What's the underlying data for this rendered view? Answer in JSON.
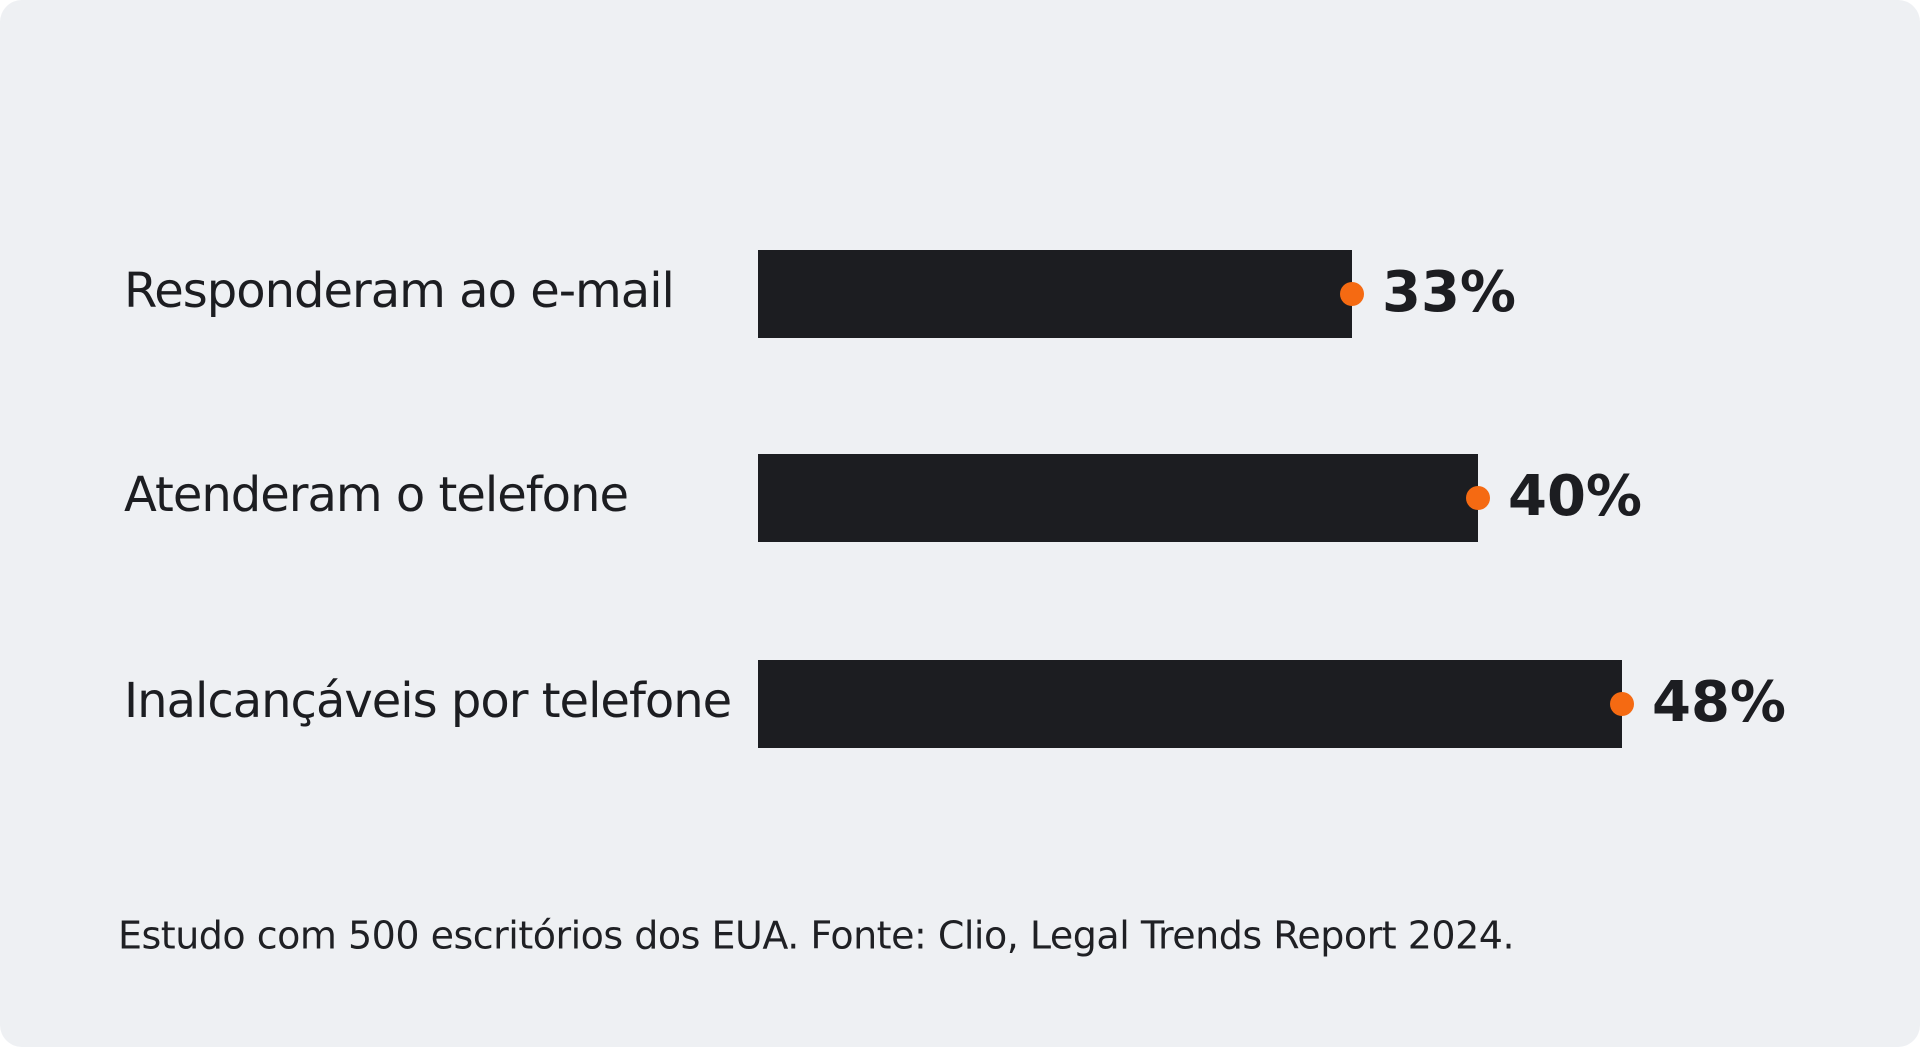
{
  "chart_data": {
    "type": "bar",
    "orientation": "horizontal",
    "categories": [
      "Responderam ao e-mail",
      "Atenderam o telefone",
      "Inalcançáveis por telefone"
    ],
    "values": [
      33,
      40,
      48
    ],
    "value_labels": [
      "33%",
      "40%",
      "48%"
    ],
    "color": "#1c1d21",
    "marker_color": "#f56a12",
    "caption": "Estudo com 500 escritórios dos EUA. Fonte: Clio, Legal Trends Report 2024."
  }
}
